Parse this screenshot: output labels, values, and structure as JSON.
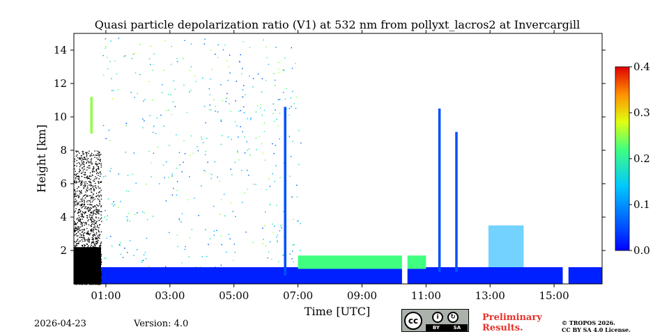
{
  "chart_data": {
    "type": "heatmap",
    "title": "Quasi particle depolarization ratio (V1) at 532 nm from pollyxt_lacros2 at Invercargill",
    "xlabel": "Time [UTC]",
    "ylabel": "Height [km]",
    "x_range_hours": [
      0.0,
      16.5
    ],
    "ylim": [
      0,
      15
    ],
    "x_ticks": [
      {
        "value": 1,
        "label": "01:00"
      },
      {
        "value": 3,
        "label": "03:00"
      },
      {
        "value": 5,
        "label": "05:00"
      },
      {
        "value": 7,
        "label": "07:00"
      },
      {
        "value": 9,
        "label": "09:00"
      },
      {
        "value": 11,
        "label": "11:00"
      },
      {
        "value": 13,
        "label": "13:00"
      },
      {
        "value": 15,
        "label": "15:00"
      }
    ],
    "y_ticks": [
      {
        "value": 2,
        "label": "2"
      },
      {
        "value": 4,
        "label": "4"
      },
      {
        "value": 6,
        "label": "6"
      },
      {
        "value": 8,
        "label": "8"
      },
      {
        "value": 10,
        "label": "10"
      },
      {
        "value": 12,
        "label": "12"
      },
      {
        "value": 14,
        "label": "14"
      }
    ],
    "colorbar": {
      "range": [
        0.0,
        0.4
      ],
      "ticks": [
        {
          "value": 0.0,
          "label": "0.0"
        },
        {
          "value": 0.1,
          "label": "0.1"
        },
        {
          "value": 0.2,
          "label": "0.2"
        },
        {
          "value": 0.3,
          "label": "0.3"
        },
        {
          "value": 0.4,
          "label": "0.4"
        }
      ],
      "colormap": "jet"
    },
    "features": [
      {
        "name": "boundary-layer",
        "t_start": 0.85,
        "t_end": 16.5,
        "h_bottom": 0.0,
        "h_top": 1.0,
        "value": 0.02
      },
      {
        "name": "elevated-aerosol-layer",
        "t_start": 7.0,
        "t_end": 11.0,
        "h_bottom": 0.9,
        "h_top": 1.7,
        "value": 0.22
      },
      {
        "name": "cloud-column-0635",
        "time": 6.6,
        "h_bottom": 0.5,
        "h_top": 10.6,
        "value": 0.05
      },
      {
        "name": "cloud-column-1125",
        "time": 11.42,
        "h_bottom": 0.7,
        "h_top": 10.5,
        "value": 0.05
      },
      {
        "name": "cloud-column-1155",
        "time": 11.95,
        "h_bottom": 0.7,
        "h_top": 9.1,
        "value": 0.05
      },
      {
        "name": "cirrus-patch-0045",
        "time": 0.55,
        "h_bottom": 9.0,
        "h_top": 11.2,
        "value": 0.25
      },
      {
        "name": "low-cloud-1300-1400",
        "t_start": 12.95,
        "t_end": 14.05,
        "h_bottom": 1.0,
        "h_top": 3.5,
        "value": 0.12
      },
      {
        "name": "low-noise-region-0000-0050",
        "t_start": 0.0,
        "t_end": 0.85,
        "h_bottom": 0.0,
        "h_top": 8.0,
        "value": null
      }
    ],
    "gaps_hours": [
      [
        10.25,
        10.42
      ],
      [
        15.27,
        15.45
      ]
    ]
  },
  "footer": {
    "date": "2026-04-23",
    "version": "Version: 4.0",
    "license_badge": {
      "cc": "cc",
      "by": "BY",
      "sa": "SA"
    },
    "preliminary_line1": "Preliminary",
    "preliminary_line2": "Results.",
    "copyright_line1": "© TROPOS 2026.",
    "copyright_line2": "CC BY SA 4.0 License."
  }
}
